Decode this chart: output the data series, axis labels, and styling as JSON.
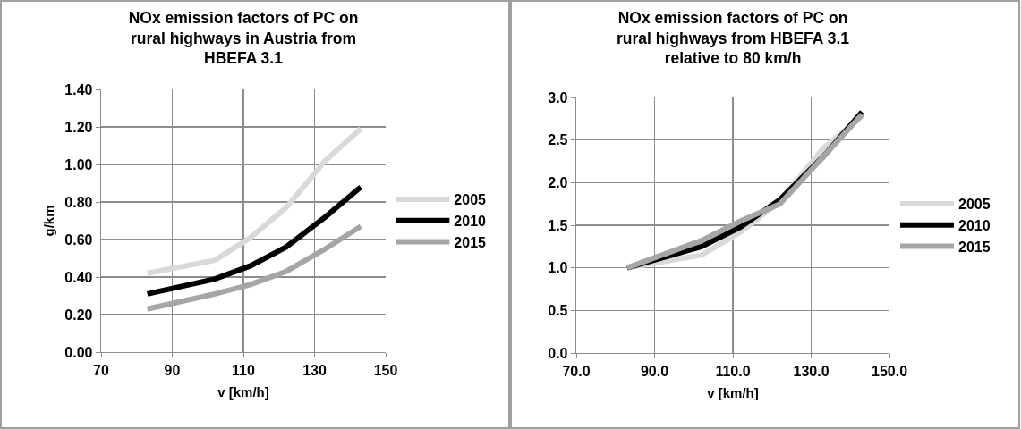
{
  "chart_data": [
    {
      "type": "line",
      "title": "NOx emission factors of PC on rural highways in Austria from HBEFA 3.1",
      "xlabel": "v [km/h]",
      "ylabel": "g/km",
      "x": [
        83,
        102,
        112,
        122,
        133,
        143
      ],
      "series": [
        {
          "name": "2005",
          "color": "#d9d9d9",
          "values": [
            0.42,
            0.49,
            0.61,
            0.77,
            1.02,
            1.19
          ]
        },
        {
          "name": "2010",
          "color": "#000000",
          "values": [
            0.31,
            0.39,
            0.46,
            0.56,
            0.72,
            0.88
          ]
        },
        {
          "name": "2015",
          "color": "#a6a6a6",
          "values": [
            0.23,
            0.31,
            0.36,
            0.43,
            0.55,
            0.67
          ]
        }
      ],
      "xlim": [
        70,
        150
      ],
      "xticks": [
        70,
        90,
        110,
        130,
        150
      ],
      "ylim": [
        0,
        1.4
      ],
      "yticks": [
        {
          "value": 0,
          "label": "0.00"
        },
        {
          "value": 0.2,
          "label": "0.20"
        },
        {
          "value": 0.4,
          "label": "0.40"
        },
        {
          "value": 0.6,
          "label": "0.60"
        },
        {
          "value": 0.8,
          "label": "0.80"
        },
        {
          "value": 1,
          "label": "1.00"
        },
        {
          "value": 1.2,
          "label": "1.20"
        },
        {
          "value": 1.4,
          "label": "1.40"
        }
      ],
      "grid": true,
      "legend": "right",
      "marker": "none",
      "line_style": "solid"
    },
    {
      "type": "line",
      "title": "NOx emission factors of PC on rural highways from HBEFA 3.1 relative to 80 km/h",
      "xlabel": "v [km/h]",
      "x": [
        83,
        102,
        112,
        122,
        133,
        143
      ],
      "series": [
        {
          "name": "2005",
          "color": "#d9d9d9",
          "values": [
            1.0,
            1.15,
            1.42,
            1.78,
            2.4,
            2.78
          ]
        },
        {
          "name": "2010",
          "color": "#000000",
          "values": [
            1.0,
            1.25,
            1.48,
            1.8,
            2.3,
            2.83
          ]
        },
        {
          "name": "2015",
          "color": "#a6a6a6",
          "values": [
            1.0,
            1.32,
            1.55,
            1.75,
            2.3,
            2.8
          ]
        }
      ],
      "xlim": [
        70,
        150
      ],
      "xticks": [
        {
          "value": 70,
          "label": "70.0"
        },
        {
          "value": 90,
          "label": "90.0"
        },
        {
          "value": 110,
          "label": "110.0"
        },
        {
          "value": 130,
          "label": "130.0"
        },
        {
          "value": 150,
          "label": "150.0"
        }
      ],
      "ylim": [
        0,
        3
      ],
      "yticks": [
        {
          "value": 0,
          "label": "0.0"
        },
        {
          "value": 0.5,
          "label": "0.5"
        },
        {
          "value": 1,
          "label": "1.0"
        },
        {
          "value": 1.5,
          "label": "1.5"
        },
        {
          "value": 2,
          "label": "2.0"
        },
        {
          "value": 2.5,
          "label": "2.5"
        },
        {
          "value": 3,
          "label": "3.0"
        }
      ],
      "grid": true,
      "legend": "right",
      "marker": "none",
      "line_style": "solid"
    }
  ]
}
